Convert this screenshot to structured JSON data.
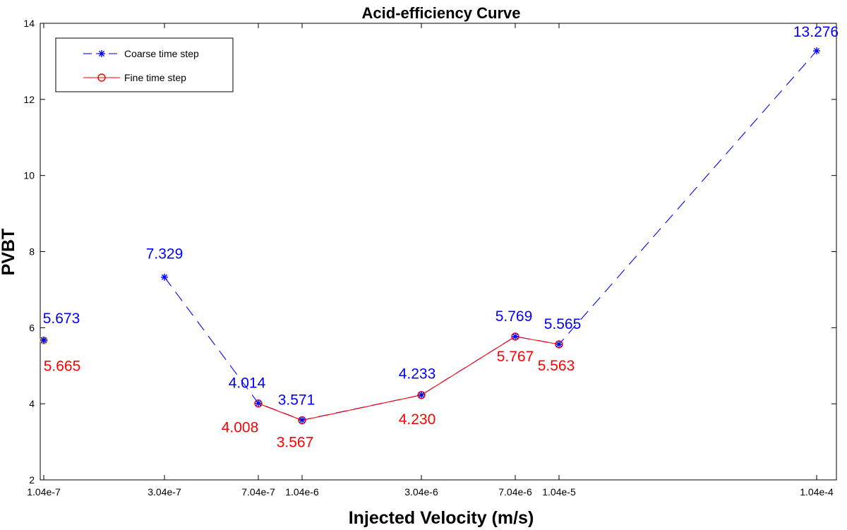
{
  "chart_data": {
    "type": "line",
    "title": "Acid-efficiency Curve",
    "xlabel": "Injected Velocity (m/s)",
    "ylabel": "PVBT",
    "xscale": "log",
    "x_tick_labels": [
      "1.04e-7",
      "3.04e-7",
      "7.04e-7",
      "1.04e-6",
      "3.04e-6",
      "7.04e-6",
      "1.04e-5",
      "1.04e-4"
    ],
    "x_ticks": [
      1.04e-07,
      3.04e-07,
      7.04e-07,
      1.04e-06,
      3.04e-06,
      7.04e-06,
      1.04e-05,
      0.000104
    ],
    "y_ticks": [
      2,
      4,
      6,
      8,
      10,
      12,
      14
    ],
    "ylim": [
      2,
      14
    ],
    "legend_position": "top-left",
    "series": [
      {
        "name": "Coarse time step",
        "color": "#0000ff",
        "marker": "asterisk",
        "line_style": "dashed",
        "x": [
          1.04e-07,
          3.04e-07,
          7.04e-07,
          1.04e-06,
          3.04e-06,
          7.04e-06,
          1.04e-05,
          0.000104
        ],
        "values": [
          5.673,
          7.329,
          4.014,
          3.571,
          4.233,
          5.769,
          5.565,
          13.276
        ],
        "labels": [
          "5.673",
          "7.329",
          "4.014",
          "3.571",
          "4.233",
          "5.769",
          "5.565",
          "13.276"
        ]
      },
      {
        "name": "Fine time step",
        "color": "#ff0000",
        "marker": "circle",
        "line_style": "solid",
        "x": [
          1.04e-07,
          7.04e-07,
          1.04e-06,
          3.04e-06,
          7.04e-06,
          1.04e-05
        ],
        "values": [
          5.665,
          4.008,
          3.567,
          4.23,
          5.767,
          5.563
        ],
        "labels": [
          "5.665",
          "4.008",
          "3.567",
          "4.230",
          "5.767",
          "5.563"
        ]
      }
    ]
  }
}
